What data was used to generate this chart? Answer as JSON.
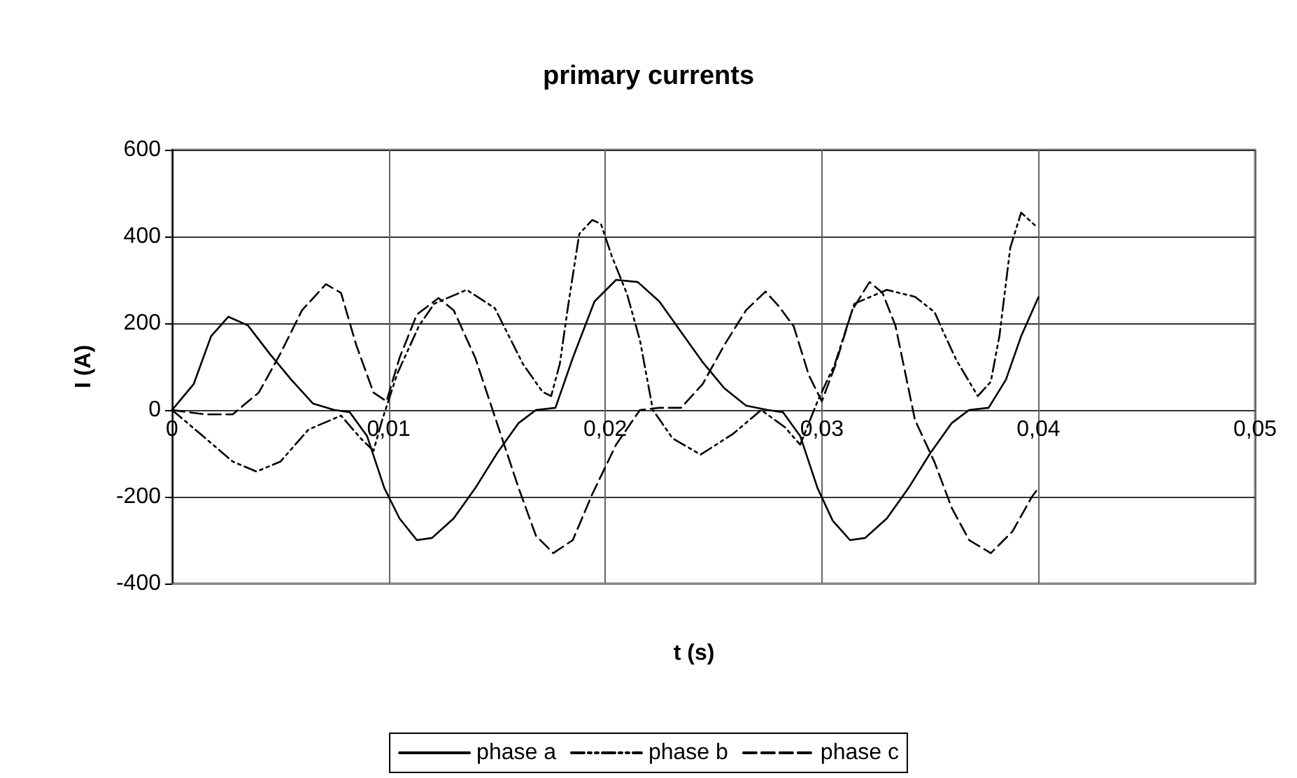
{
  "chart_data": {
    "type": "line",
    "title": "primary currents",
    "xlabel": "t (s)",
    "ylabel": "I (A)",
    "xlim": [
      0,
      0.05
    ],
    "xticks": [
      0,
      {
        "value": 0.01,
        "label": "0,01"
      },
      {
        "value": 0.02,
        "label": "0,02"
      },
      {
        "value": 0.03,
        "label": "0,03"
      },
      {
        "value": 0.04,
        "label": "0,04"
      },
      {
        "value": 0.05,
        "label": "0,05"
      }
    ],
    "ylim": [
      -400,
      600
    ],
    "yticks": [
      -400,
      -200,
      0,
      200,
      400,
      600
    ],
    "grid": true,
    "legend": "bottom",
    "marker": "none",
    "series": [
      {
        "name": "phase a",
        "color": "#000000",
        "line_style": "solid",
        "x": [
          0,
          0.001,
          0.0018,
          0.0026,
          0.0035,
          0.0045,
          0.0055,
          0.0065,
          0.0075,
          0.0082,
          0.009,
          0.0098,
          0.0105,
          0.0113,
          0.012,
          0.013,
          0.014,
          0.015,
          0.016,
          0.0168,
          0.0177,
          0.0185,
          0.0195,
          0.0205,
          0.0215,
          0.0225,
          0.0235,
          0.0245,
          0.0255,
          0.0265,
          0.0275,
          0.0282,
          0.029,
          0.0298,
          0.0305,
          0.0313,
          0.032,
          0.033,
          0.034,
          0.035,
          0.036,
          0.0368,
          0.0377,
          0.0385,
          0.0392,
          0.04
        ],
        "values": [
          0,
          60,
          170,
          215,
          195,
          130,
          70,
          15,
          0,
          -5,
          -60,
          -180,
          -250,
          -300,
          -295,
          -250,
          -180,
          -100,
          -30,
          0,
          5,
          120,
          250,
          300,
          295,
          250,
          180,
          110,
          50,
          10,
          0,
          -5,
          -60,
          -180,
          -255,
          -300,
          -295,
          -250,
          -180,
          -100,
          -30,
          0,
          5,
          70,
          170,
          260
        ]
      },
      {
        "name": "phase b",
        "color": "#000000",
        "line_style": "dashdot",
        "x": [
          0,
          0.0013,
          0.0028,
          0.0039,
          0.005,
          0.0063,
          0.0078,
          0.0087,
          0.0093,
          0.0097,
          0.0104,
          0.0114,
          0.0121,
          0.0136,
          0.0149,
          0.0162,
          0.0171,
          0.0175,
          0.0179,
          0.0183,
          0.0188,
          0.0194,
          0.0198,
          0.0203,
          0.021,
          0.0216,
          0.0222,
          0.0231,
          0.0244,
          0.0259,
          0.0272,
          0.0283,
          0.029,
          0.0294,
          0.0298,
          0.0306,
          0.0315,
          0.033,
          0.0343,
          0.0352,
          0.0356,
          0.0362,
          0.0372,
          0.0378,
          0.0382,
          0.0387,
          0.0392,
          0.0399
        ],
        "values": [
          0,
          -55,
          -119,
          -142,
          -119,
          -45,
          -13,
          -65,
          -94,
          -23,
          84,
          194,
          245,
          277,
          235,
          106,
          42,
          32,
          106,
          245,
          406,
          438,
          429,
          355,
          268,
          161,
          0,
          -65,
          -103,
          -55,
          0,
          -40,
          -80,
          -30,
          20,
          106,
          245,
          277,
          261,
          226,
          181,
          116,
          32,
          65,
          171,
          374,
          455,
          423
        ]
      },
      {
        "name": "phase c",
        "color": "#000000",
        "line_style": "dashed",
        "x": [
          0,
          0.0015,
          0.0028,
          0.004,
          0.005,
          0.006,
          0.0071,
          0.0078,
          0.0085,
          0.0093,
          0.0099,
          0.0105,
          0.0113,
          0.0123,
          0.013,
          0.014,
          0.015,
          0.016,
          0.0168,
          0.0176,
          0.0185,
          0.0194,
          0.0205,
          0.0216,
          0.0225,
          0.0235,
          0.0245,
          0.0255,
          0.0265,
          0.0274,
          0.028,
          0.0287,
          0.0294,
          0.03,
          0.0306,
          0.0314,
          0.0322,
          0.0328,
          0.0334,
          0.0343,
          0.0352,
          0.036,
          0.0368,
          0.0378,
          0.0388,
          0.0397,
          0.04
        ],
        "values": [
          0,
          -10,
          -10,
          40,
          130,
          230,
          290,
          270,
          150,
          40,
          20,
          120,
          220,
          258,
          230,
          120,
          -30,
          -180,
          -290,
          -330,
          -300,
          -194,
          -80,
          0,
          5,
          5,
          60,
          150,
          230,
          273,
          240,
          193,
          80,
          20,
          100,
          230,
          295,
          270,
          194,
          -23,
          -120,
          -226,
          -300,
          -330,
          -280,
          -200,
          -180
        ]
      }
    ]
  }
}
